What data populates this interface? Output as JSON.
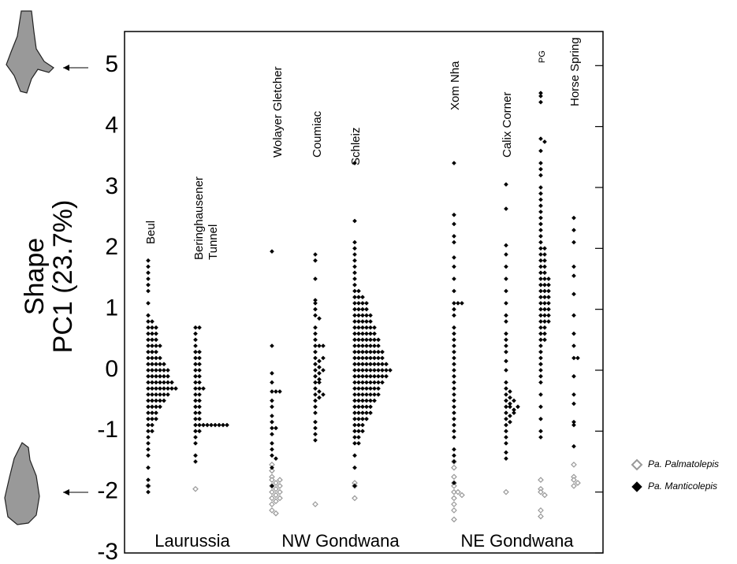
{
  "chart_data": {
    "type": "strip",
    "y_label": [
      "Shape",
      "PC1 (23.7%)"
    ],
    "ylim": [
      -3,
      5.56
    ],
    "yticks": [
      -3,
      -2,
      -1,
      0,
      1,
      2,
      3,
      4,
      5
    ],
    "categories": [
      "Beul",
      [
        "Beringhausener",
        "Tunnel"
      ],
      "Wolayer Gletcher",
      "Coumiac",
      "Schleiz",
      "Xom Nha",
      "Calix Corner",
      "PG",
      "Horse Spring"
    ],
    "groups": [
      "Laurussia",
      "NW Gondwana",
      "NE Gondwana"
    ],
    "legend_position": "right",
    "series": [
      {
        "name": "Pa. Palmatolepis",
        "color": "#999999",
        "marker": "hollow",
        "values": [
          [
            -1.9
          ],
          [
            -1.95
          ],
          [
            -1.55,
            -1.65,
            -1.75,
            -1.8,
            -1.85,
            -1.9,
            -1.95,
            -2,
            -2.05,
            -2.1,
            -2.15,
            -2.2,
            -2.3,
            -2.35,
            -1.8,
            -1.9,
            -2,
            -2.1
          ],
          [
            -2.2
          ],
          [
            -1.85,
            -1.9,
            -2.1
          ],
          [
            -1.5,
            -1.6,
            -1.75,
            -1.85,
            -1.9,
            -2,
            -2,
            -2.05,
            -2.1,
            -2.2,
            -2.3,
            -2.45
          ],
          [
            -2
          ],
          [
            -1.8,
            -1.95,
            -2,
            -2.05,
            -2.3,
            -2.4
          ],
          [
            -1.55,
            -1.75,
            -1.8,
            -1.85,
            -1.9
          ]
        ]
      },
      {
        "name": "Pa. Manticolepis",
        "color": "#000000",
        "marker": "filled",
        "values": [
          [
            1.8,
            1.7,
            1.6,
            1.5,
            1.4,
            1.3,
            1.1,
            0.9,
            0.8,
            0.8,
            0.7,
            0.7,
            0.7,
            0.6,
            0.6,
            0.6,
            0.5,
            0.5,
            0.5,
            0.4,
            0.4,
            0.4,
            0.4,
            0.3,
            0.3,
            0.3,
            0.2,
            0.2,
            0.2,
            0.2,
            0.1,
            0.1,
            0.1,
            0.1,
            0.1,
            0,
            0,
            0,
            0,
            0,
            0,
            -0.1,
            -0.1,
            -0.1,
            -0.1,
            -0.1,
            -0.1,
            -0.2,
            -0.2,
            -0.2,
            -0.2,
            -0.2,
            -0.2,
            -0.2,
            -0.3,
            -0.3,
            -0.3,
            -0.3,
            -0.3,
            -0.3,
            -0.3,
            -0.3,
            -0.4,
            -0.4,
            -0.4,
            -0.4,
            -0.4,
            -0.4,
            -0.5,
            -0.5,
            -0.5,
            -0.5,
            -0.5,
            -0.6,
            -0.6,
            -0.6,
            -0.6,
            -0.7,
            -0.7,
            -0.7,
            -0.8,
            -0.8,
            -0.8,
            -0.9,
            -0.9,
            -1,
            -1,
            -1.1,
            -1.2,
            -1.3,
            -1.4,
            -1.6,
            -1.8,
            -1.9,
            -2
          ],
          [
            0.7,
            0.7,
            0.6,
            0.5,
            0.4,
            0.3,
            0.3,
            0.2,
            0.2,
            0.1,
            0.1,
            0,
            0,
            -0.1,
            -0.1,
            -0.2,
            -0.2,
            -0.3,
            -0.3,
            -0.3,
            -0.4,
            -0.4,
            -0.5,
            -0.5,
            -0.6,
            -0.6,
            -0.7,
            -0.7,
            -0.8,
            -0.8,
            -0.9,
            -0.9,
            -0.9,
            -0.9,
            -0.9,
            -0.9,
            -0.9,
            -0.9,
            -0.9,
            -1,
            -1,
            -1.1,
            -1.2,
            -1.4,
            -1.5
          ],
          [
            1.95,
            0.4,
            -0.05,
            -0.2,
            -0.35,
            -0.35,
            -0.35,
            -0.5,
            -0.6,
            -0.75,
            -0.85,
            -0.95,
            -0.95,
            -1.05,
            -1.2,
            -1.3,
            -1.4,
            -1.45,
            -1.6,
            -1.9
          ],
          [
            1.9,
            1.8,
            1.5,
            1.15,
            1.1,
            1,
            0.9,
            0.85,
            0.7,
            0.6,
            0.5,
            0.4,
            0.4,
            0.3,
            0.2,
            0.15,
            0.1,
            0.05,
            0,
            -0.05,
            -0.1,
            -0.15,
            -0.2,
            -0.3,
            -0.35,
            -0.4,
            -0.45,
            -0.5,
            -0.6,
            -0.7,
            -0.85,
            -0.95,
            -1.05,
            -1.15,
            0.4,
            0.2,
            0,
            -0.2,
            -0.4
          ],
          [
            3.4,
            2.45,
            2.1,
            2,
            1.9,
            1.8,
            1.7,
            1.6,
            1.5,
            1.4,
            1.3,
            1.3,
            1.2,
            1.2,
            1.2,
            1.1,
            1.1,
            1.1,
            1.1,
            1,
            1,
            1,
            1,
            0.9,
            0.9,
            0.9,
            0.9,
            0.9,
            0.8,
            0.8,
            0.8,
            0.8,
            0.8,
            0.7,
            0.7,
            0.7,
            0.7,
            0.7,
            0.7,
            0.6,
            0.6,
            0.6,
            0.6,
            0.6,
            0.6,
            0.5,
            0.5,
            0.5,
            0.5,
            0.5,
            0.5,
            0.5,
            0.4,
            0.4,
            0.4,
            0.4,
            0.4,
            0.4,
            0.4,
            0.3,
            0.3,
            0.3,
            0.3,
            0.3,
            0.3,
            0.3,
            0.3,
            0.2,
            0.2,
            0.2,
            0.2,
            0.2,
            0.2,
            0.2,
            0.2,
            0.1,
            0.1,
            0.1,
            0.1,
            0.1,
            0.1,
            0.1,
            0.1,
            0.1,
            0,
            0,
            0,
            0,
            0,
            0,
            0,
            0,
            0,
            0,
            -0.1,
            -0.1,
            -0.1,
            -0.1,
            -0.1,
            -0.1,
            -0.1,
            -0.1,
            -0.1,
            -0.2,
            -0.2,
            -0.2,
            -0.2,
            -0.2,
            -0.2,
            -0.2,
            -0.2,
            -0.3,
            -0.3,
            -0.3,
            -0.3,
            -0.3,
            -0.3,
            -0.3,
            -0.4,
            -0.4,
            -0.4,
            -0.4,
            -0.4,
            -0.4,
            -0.4,
            -0.5,
            -0.5,
            -0.5,
            -0.5,
            -0.5,
            -0.5,
            -0.6,
            -0.6,
            -0.6,
            -0.6,
            -0.6,
            -0.7,
            -0.7,
            -0.7,
            -0.7,
            -0.7,
            -0.8,
            -0.8,
            -0.8,
            -0.8,
            -0.9,
            -0.9,
            -0.9,
            -1,
            -1,
            -1,
            -1.1,
            -1.1,
            -1.2,
            -1.2,
            -1.4,
            -1.6,
            -1.9
          ],
          [
            3.4,
            2.55,
            2.4,
            2.2,
            2.1,
            1.85,
            1.7,
            1.5,
            1.3,
            1.1,
            1.1,
            1.1,
            1,
            0.9,
            0.7,
            0.6,
            0.5,
            0.4,
            0.3,
            0.2,
            0.1,
            0,
            -0.1,
            -0.2,
            -0.3,
            -0.4,
            -0.5,
            -0.6,
            -0.7,
            -0.8,
            -0.9,
            -1,
            -1.1,
            -1.3,
            -1.4,
            -1.5,
            -1.85
          ],
          [
            3.05,
            2.65,
            2.05,
            1.9,
            1.7,
            1.5,
            1.3,
            1.1,
            0.9,
            0.8,
            0.6,
            0.5,
            0.4,
            0.3,
            0.15,
            0,
            -0.2,
            -0.3,
            -0.35,
            -0.4,
            -0.45,
            -0.5,
            -0.55,
            -0.6,
            -0.6,
            -0.65,
            -0.7,
            -0.75,
            -0.8,
            -0.85,
            -0.9,
            -1,
            -1.1,
            -1.2,
            -1.35,
            -1.45,
            -0.5,
            -0.6,
            -0.7
          ],
          [
            4.55,
            4.5,
            4.4,
            3.8,
            3.75,
            3.6,
            3.4,
            3.3,
            3.2,
            3,
            2.9,
            2.8,
            2.7,
            2.6,
            2.5,
            2.4,
            2.3,
            2.2,
            2.1,
            2,
            1.9,
            1.8,
            1.7,
            1.6,
            1.5,
            1.4,
            1.3,
            1.2,
            1.1,
            1,
            0.9,
            0.8,
            0.7,
            0.6,
            0.5,
            0.4,
            0.3,
            0.2,
            0.1,
            0,
            -0.1,
            -0.2,
            -0.4,
            -0.6,
            -0.8,
            -1,
            -1.1,
            2,
            1.9,
            1.8,
            1.7,
            1.6,
            1.5,
            1.4,
            1.3,
            1.2,
            1.1,
            1,
            0.9,
            0.8,
            0.7,
            0.6,
            0.5,
            1.5,
            1.4,
            1.3,
            1.2,
            1.1,
            1,
            0.9,
            0.8
          ],
          [
            2.5,
            2.3,
            2.1,
            1.7,
            1.55,
            1.25,
            0.9,
            0.6,
            0.4,
            0.2,
            0.2,
            -0.1,
            -0.4,
            -0.55,
            -0.85,
            -0.9,
            -1.25
          ]
        ]
      }
    ]
  }
}
